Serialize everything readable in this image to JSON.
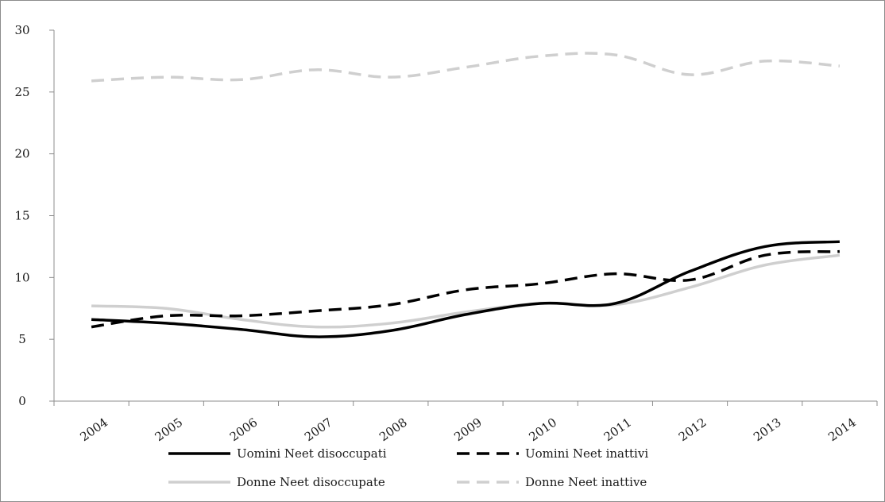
{
  "chart_data": {
    "type": "line",
    "title": "",
    "xlabel": "",
    "ylabel": "",
    "categories": [
      "2004",
      "2005",
      "2006",
      "2007",
      "2008",
      "2009",
      "2010",
      "2011",
      "2012",
      "2013",
      "2014"
    ],
    "ylim": [
      0,
      30
    ],
    "yticks": [
      "0",
      "5",
      "10",
      "15",
      "20",
      "25",
      "30"
    ],
    "grid": false,
    "legend_position": "bottom",
    "series": [
      {
        "name": "Uomini Neet disoccupati",
        "values": [
          6.6,
          6.3,
          5.8,
          5.2,
          5.7,
          7.0,
          7.9,
          7.9,
          10.5,
          12.5,
          12.9
        ],
        "color": "#000000",
        "dash": "solid"
      },
      {
        "name": "Uomini Neet inattivi",
        "values": [
          6.0,
          6.9,
          6.9,
          7.3,
          7.8,
          9.0,
          9.5,
          10.3,
          9.8,
          11.8,
          12.1
        ],
        "color": "#000000",
        "dash": "dashed"
      },
      {
        "name": "Donne Neet disoccupate",
        "values": [
          7.7,
          7.5,
          6.6,
          6.0,
          6.3,
          7.2,
          7.9,
          7.8,
          9.2,
          11.0,
          11.8
        ],
        "color": "#cfcfcf",
        "dash": "solid"
      },
      {
        "name": "Donne Neet inattive",
        "values": [
          25.9,
          26.2,
          26.0,
          26.8,
          26.2,
          27.0,
          27.9,
          28.0,
          26.4,
          27.5,
          27.1
        ],
        "color": "#cfcfcf",
        "dash": "dashed"
      }
    ]
  }
}
